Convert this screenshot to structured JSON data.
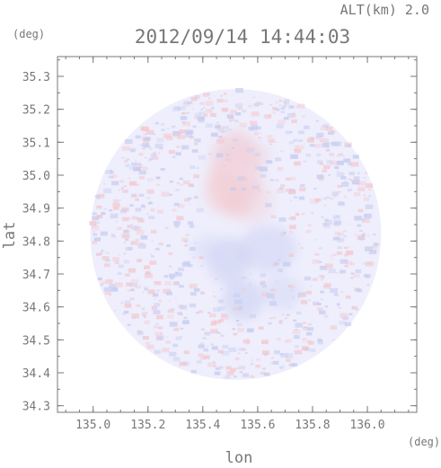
{
  "chart_data": {
    "type": "heatmap",
    "title": "2012/09/14 14:44:03",
    "altitude_label": "ALT(km) 2.0",
    "xlabel": "lon",
    "ylabel": "lat",
    "x_unit": "(deg)",
    "y_unit": "(deg)",
    "xlim": [
      134.87,
      136.18
    ],
    "ylim": [
      34.28,
      35.36
    ],
    "x_ticks": [
      "135.0",
      "135.2",
      "135.4",
      "135.6",
      "135.8",
      "136.0"
    ],
    "y_ticks": [
      "34.3",
      "34.4",
      "34.5",
      "34.6",
      "34.7",
      "34.8",
      "34.9",
      "35.0",
      "35.1",
      "35.2",
      "35.3"
    ],
    "grid": false,
    "coverage_circle": {
      "center_lon": 135.52,
      "center_lat": 34.82,
      "radius_deg": 0.53
    },
    "colors": {
      "positive": "#f3c9cf",
      "neutral": "#eeeefc",
      "negative": "#c7cdf1",
      "axis": "#777777"
    }
  }
}
